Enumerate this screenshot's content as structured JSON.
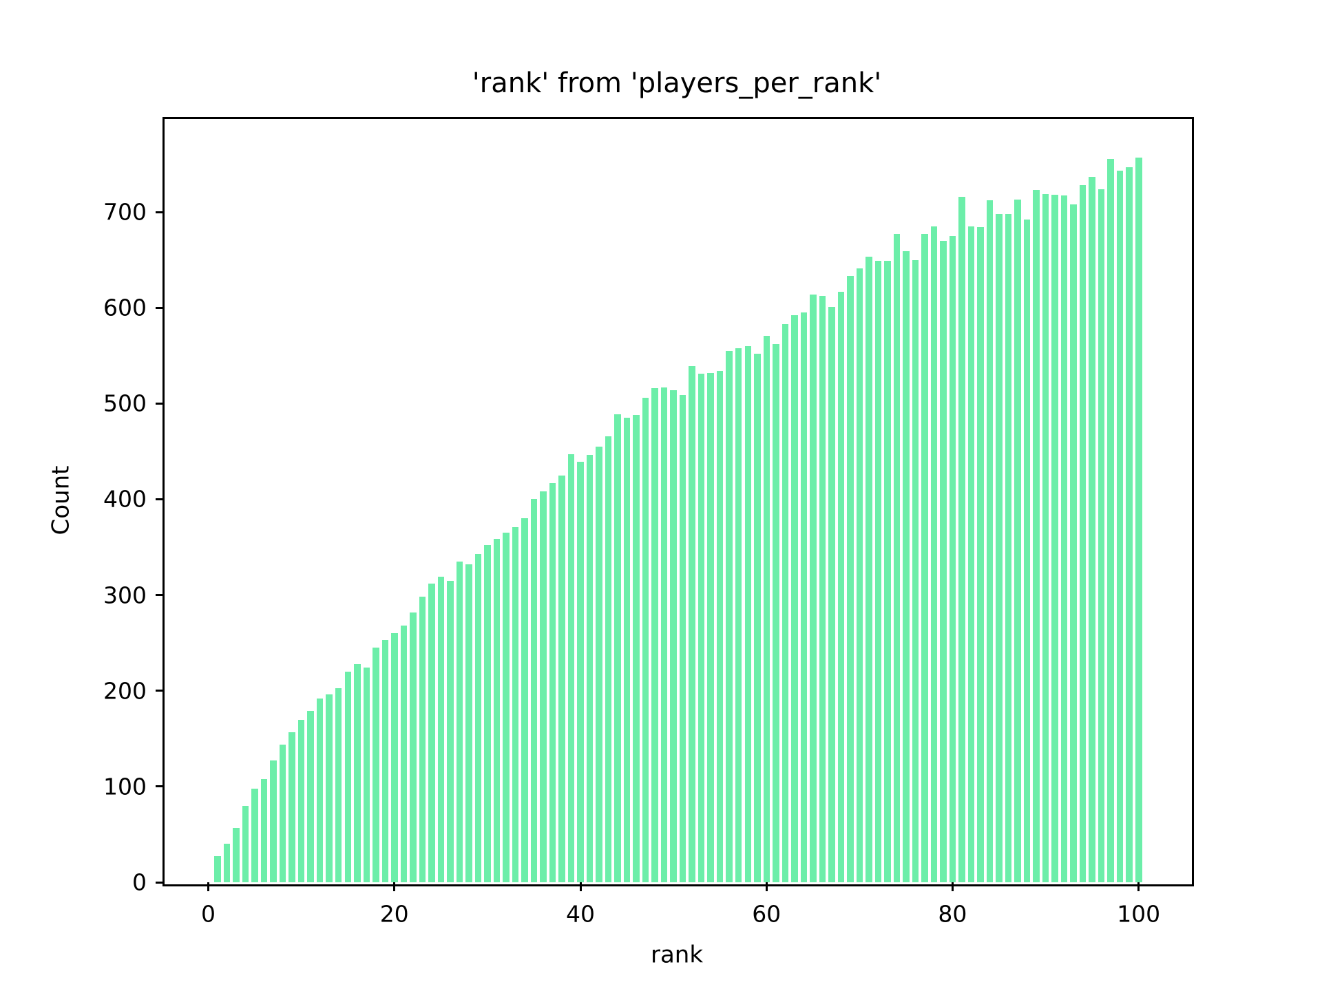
{
  "chart_data": {
    "type": "bar",
    "title": "'rank' from 'players_per_rank'",
    "xlabel": "rank",
    "ylabel": "Count",
    "x_start": 1,
    "x_end": 100,
    "values": [
      27,
      40,
      57,
      80,
      98,
      108,
      127,
      144,
      157,
      170,
      179,
      192,
      196,
      203,
      220,
      228,
      224,
      245,
      253,
      260,
      268,
      282,
      298,
      312,
      319,
      315,
      335,
      332,
      343,
      352,
      359,
      365,
      371,
      380,
      400,
      408,
      417,
      425,
      447,
      439,
      446,
      455,
      466,
      489,
      485,
      488,
      506,
      516,
      517,
      514,
      509,
      539,
      531,
      532,
      534,
      555,
      558,
      560,
      552,
      571,
      562,
      583,
      592,
      595,
      614,
      612,
      601,
      617,
      633,
      641,
      653,
      649,
      649,
      677,
      659,
      650,
      677,
      685,
      670,
      675,
      716,
      685,
      684,
      712,
      698,
      698,
      713,
      692,
      723,
      719,
      718,
      717,
      708,
      728,
      737,
      724,
      755,
      743,
      747,
      757
    ],
    "xlim": [
      -4.7,
      105.5
    ],
    "ylim": [
      0,
      797
    ],
    "xticks": [
      0,
      20,
      40,
      60,
      80,
      100
    ],
    "yticks": [
      0,
      100,
      200,
      300,
      400,
      500,
      600,
      700
    ],
    "bar_width_units": 0.7,
    "bar_color": "#6CEEA9",
    "text_color": "#000000",
    "background": "#ffffff",
    "legend": "none",
    "grid": "off"
  }
}
